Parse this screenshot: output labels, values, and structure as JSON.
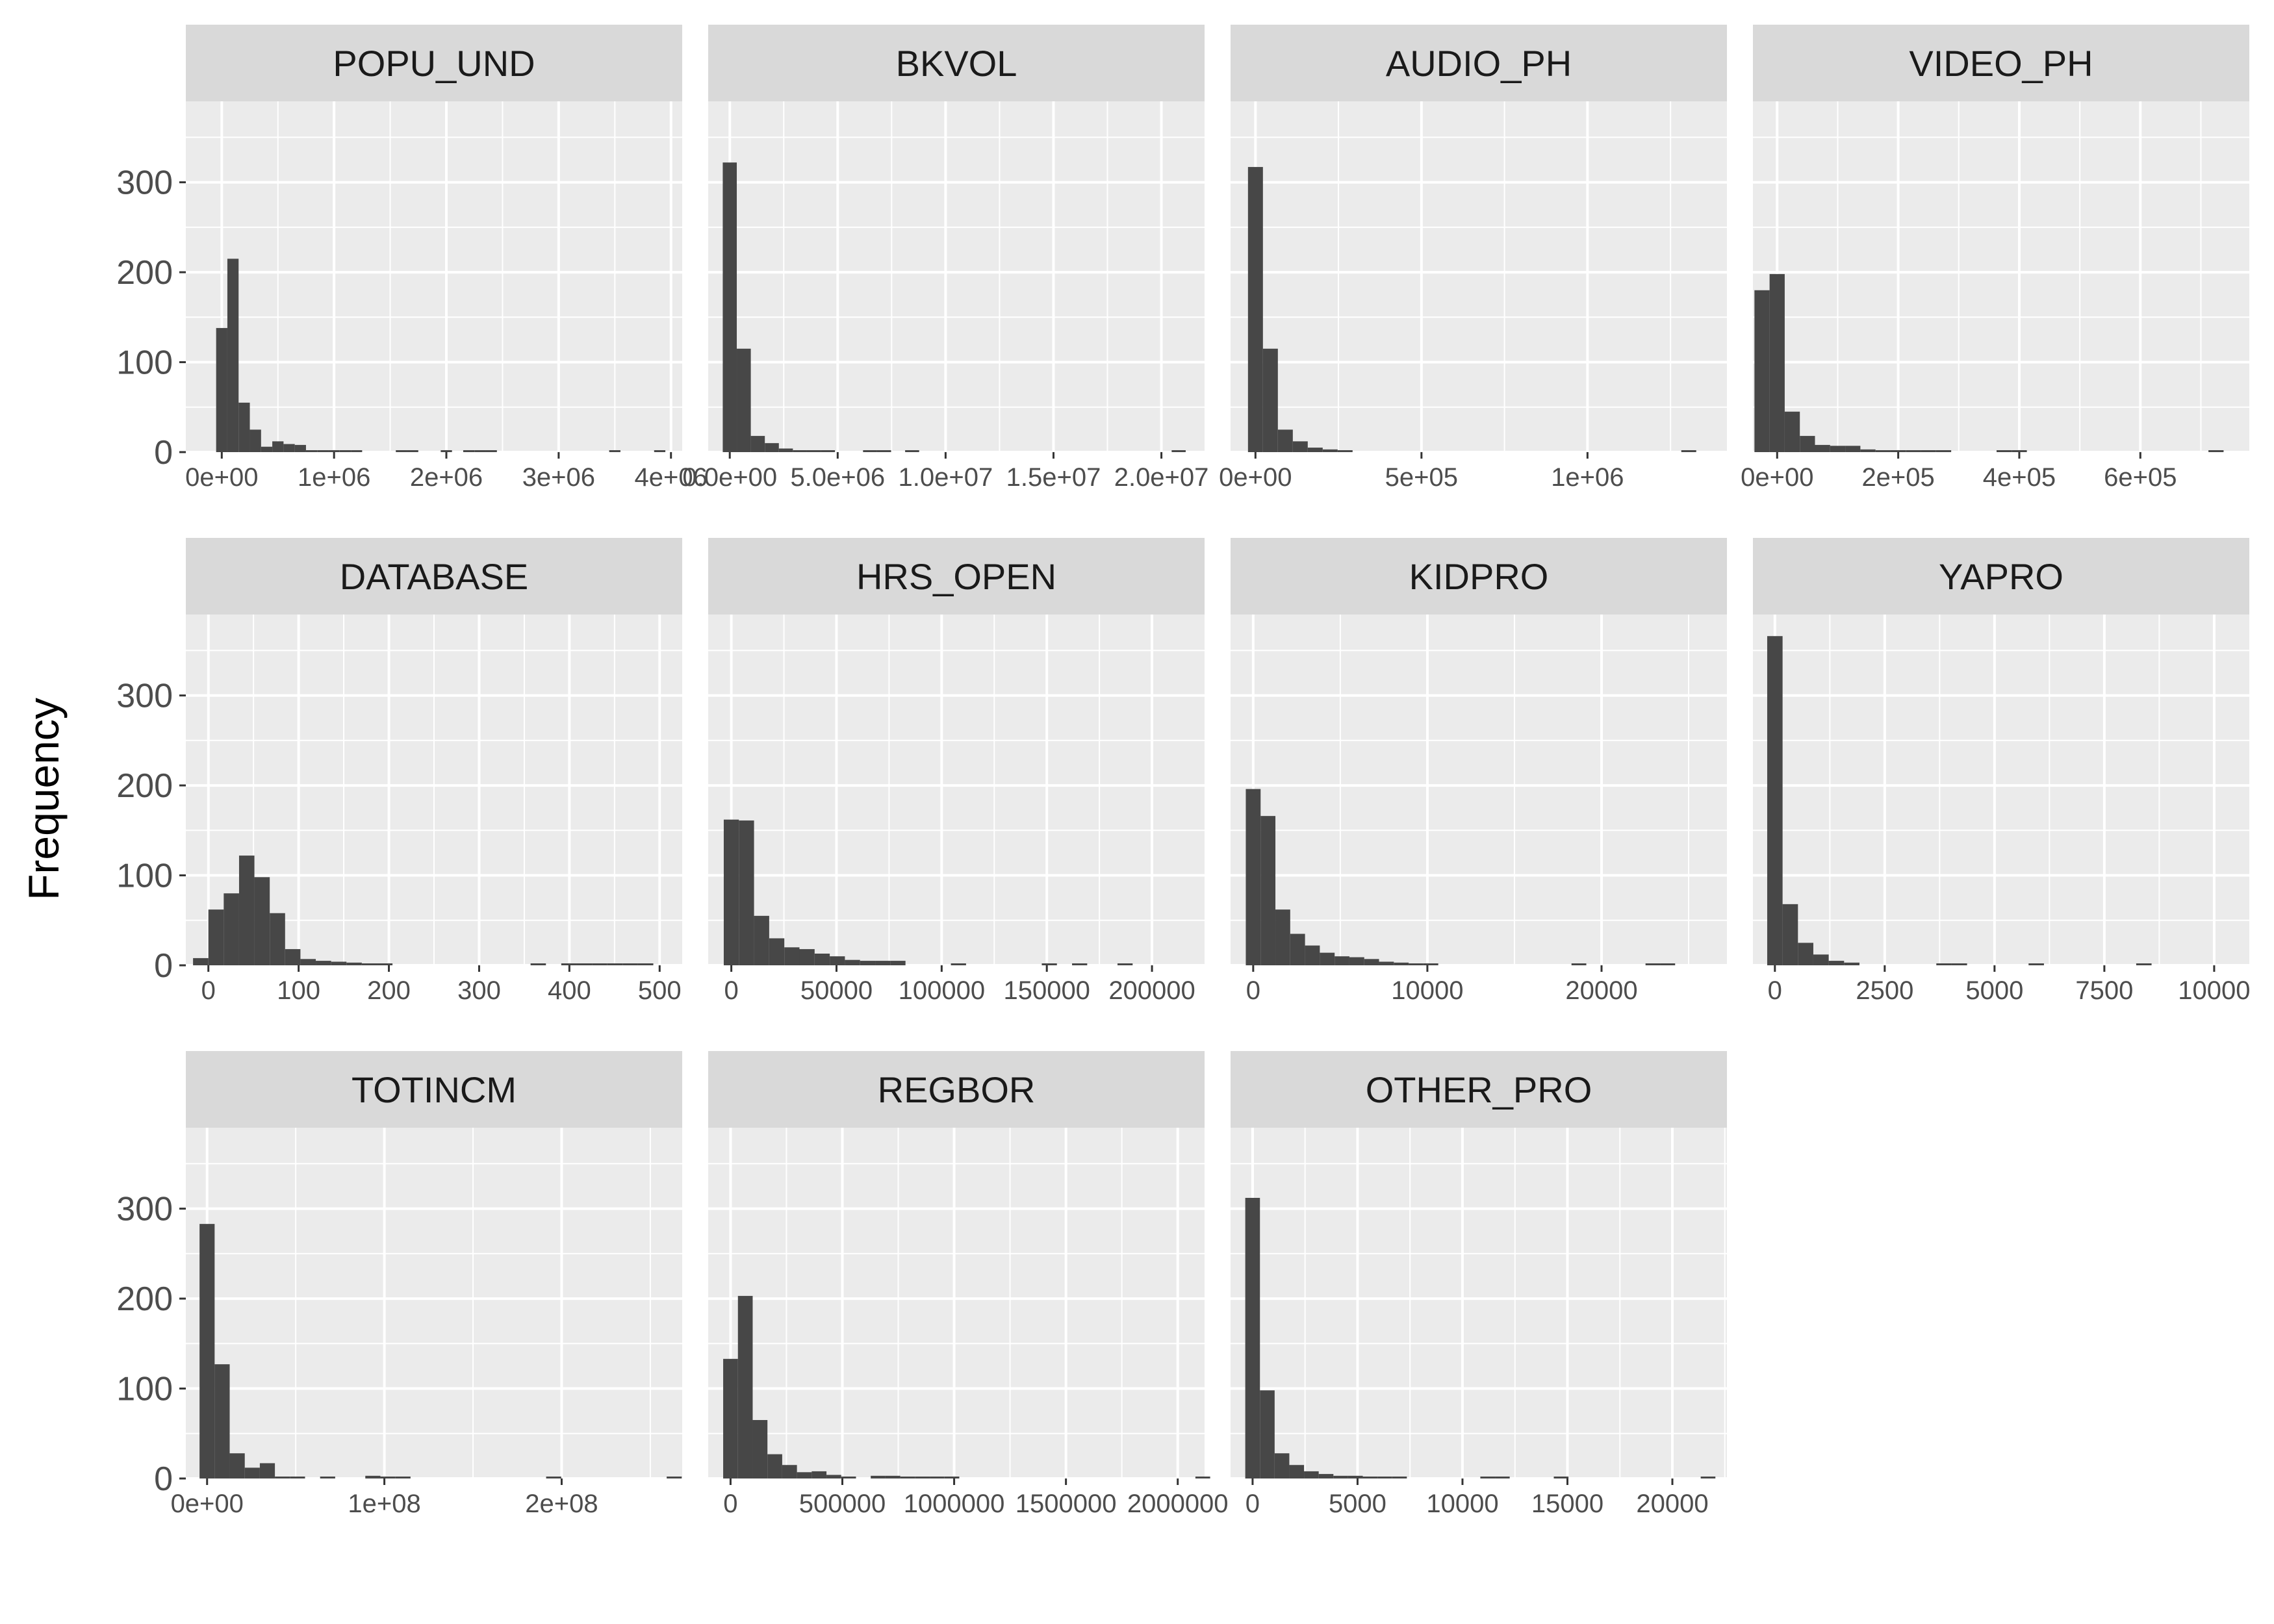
{
  "chart_data": {
    "type": "bar",
    "subtype": "faceted-histogram",
    "ylabel": "Frequency",
    "xlabel": "",
    "ylim": [
      0,
      390
    ],
    "yticks": [
      0,
      100,
      200,
      300
    ],
    "grid": true,
    "colors": {
      "bar": "#474747",
      "panel": "#ebebeb",
      "strip": "#d9d9d9",
      "grid": "#ffffff"
    },
    "facets": [
      {
        "name": "POPU_UND",
        "xlim": [
          -320000,
          4100000
        ],
        "binwidth": 100000,
        "start": -50000,
        "counts": [
          138,
          215,
          55,
          25,
          6,
          12,
          9,
          8,
          2,
          2,
          2,
          2,
          1,
          0,
          0,
          0,
          1,
          1,
          0,
          0,
          1,
          0,
          1,
          1,
          1,
          0,
          0,
          0,
          0,
          0,
          0,
          0,
          0,
          0,
          0,
          1,
          0,
          0,
          0,
          1
        ],
        "xticks": [
          0,
          1000000,
          2000000,
          3000000,
          4000000
        ],
        "xtick_labels": [
          "0e+00",
          "1e+06",
          "2e+06",
          "3e+06",
          "4e+06"
        ]
      },
      {
        "name": "BKVOL",
        "xlim": [
          -1000000,
          22000000
        ],
        "binwidth": 650000,
        "start": -325000,
        "counts": [
          322,
          115,
          18,
          10,
          4,
          2,
          2,
          2,
          0,
          0,
          1,
          1,
          0,
          1,
          0,
          0,
          0,
          0,
          0,
          0,
          0,
          0,
          0,
          0,
          0,
          0,
          0,
          0,
          0,
          0,
          0,
          0,
          1
        ],
        "xticks": [
          0,
          5000000,
          10000000,
          15000000,
          20000000
        ],
        "xtick_labels": [
          "0.0e+00",
          "5.0e+06",
          "1.0e+07",
          "1.5e+07",
          "2.0e+07"
        ]
      },
      {
        "name": "AUDIO_PH",
        "xlim": [
          -75000,
          1420000
        ],
        "binwidth": 45000,
        "start": -22500,
        "counts": [
          317,
          115,
          25,
          12,
          5,
          3,
          2,
          0,
          0,
          0,
          0,
          0,
          0,
          0,
          0,
          0,
          0,
          0,
          0,
          0,
          0,
          0,
          0,
          0,
          0,
          0,
          0,
          0,
          0,
          1
        ],
        "xticks": [
          0,
          500000,
          1000000
        ],
        "xtick_labels": [
          "0e+00",
          "5e+05",
          "1e+06"
        ]
      },
      {
        "name": "VIDEO_PH",
        "xlim": [
          -40000,
          780000
        ],
        "binwidth": 25000,
        "start": -37500,
        "counts": [
          180,
          198,
          45,
          18,
          8,
          7,
          7,
          3,
          2,
          1,
          1,
          1,
          1,
          0,
          0,
          0,
          1,
          1,
          0,
          0,
          0,
          0,
          0,
          0,
          0,
          0,
          0,
          0,
          0,
          0,
          1
        ],
        "xticks": [
          0,
          200000,
          400000,
          600000
        ],
        "xtick_labels": [
          "0e+00",
          "2e+05",
          "4e+05",
          "6e+05"
        ]
      },
      {
        "name": "DATABASE",
        "xlim": [
          -25000,
          525000
        ],
        "binwidth": 17000,
        "start": -17000,
        "counts": [
          8,
          62,
          80,
          122,
          98,
          58,
          18,
          7,
          5,
          4,
          3,
          1,
          1,
          0,
          0,
          0,
          0,
          0,
          0,
          0,
          0,
          0,
          1,
          0,
          2,
          1,
          1,
          1,
          2,
          1
        ],
        "xticks": [
          0,
          100000,
          200000,
          300000,
          400000,
          500000
        ],
        "xtick_labels": [
          "0",
          "100",
          "200",
          "300",
          "400",
          "500"
        ]
      },
      {
        "name": "HRS_OPEN",
        "xlim": [
          -11000,
          225000
        ],
        "binwidth": 7200,
        "start": -3600,
        "counts": [
          162,
          161,
          55,
          30,
          20,
          18,
          13,
          10,
          6,
          5,
          5,
          5,
          0,
          0,
          0,
          1,
          0,
          0,
          0,
          0,
          0,
          1,
          0,
          1,
          0,
          0,
          1,
          0,
          0,
          0,
          0,
          0,
          0,
          0,
          0,
          0,
          0,
          0,
          0,
          0,
          0,
          1
        ],
        "xticks": [
          0,
          50000,
          100000,
          150000,
          200000
        ],
        "xtick_labels": [
          "0",
          "50000",
          "100000",
          "150000",
          "200000"
        ]
      },
      {
        "name": "KIDPRO",
        "xlim": [
          -1300000,
          27200000
        ],
        "binwidth": 850000,
        "start": -425000,
        "counts": [
          196,
          166,
          62,
          35,
          22,
          14,
          10,
          9,
          7,
          4,
          3,
          2,
          2,
          0,
          0,
          0,
          0,
          0,
          0,
          0,
          0,
          0,
          1,
          0,
          0,
          0,
          0,
          1,
          1,
          0,
          0,
          0,
          0,
          0,
          0,
          1
        ],
        "xticks": [
          0,
          10000000,
          20000000
        ],
        "xtick_labels": [
          "0",
          "10000",
          "20000"
        ]
      },
      {
        "name": "YAPRO",
        "xlim": [
          -500000,
          10800000
        ],
        "binwidth": 350000,
        "start": -175000,
        "counts": [
          366,
          68,
          25,
          12,
          5,
          3,
          0,
          0,
          0,
          0,
          0,
          1,
          1,
          0,
          0,
          0,
          0,
          1,
          0,
          0,
          0,
          0,
          0,
          0,
          1,
          0,
          0,
          0,
          0,
          0,
          0,
          0,
          0,
          0,
          0,
          0,
          0,
          0,
          0,
          1
        ],
        "xticks": [
          0,
          2500000,
          5000000,
          7500000,
          10000000
        ],
        "xtick_labels": [
          "0",
          "2500",
          "5000",
          "7500",
          "10000"
        ]
      },
      {
        "name": "TOTINCM",
        "xlim": [
          -12000000,
          268000000
        ],
        "binwidth": 8500000,
        "start": -4250000,
        "counts": [
          283,
          127,
          28,
          12,
          17,
          2,
          2,
          0,
          1,
          0,
          0,
          3,
          2,
          1,
          0,
          0,
          0,
          0,
          0,
          0,
          0,
          0,
          0,
          1,
          0,
          0,
          0,
          0,
          0,
          0,
          0,
          1
        ],
        "xticks": [
          0,
          100000000,
          200000000
        ],
        "xtick_labels": [
          "0e+00",
          "1e+08",
          "2e+08"
        ]
      },
      {
        "name": "REGBOR",
        "xlim": [
          -100000,
          2120000
        ],
        "binwidth": 66000,
        "start": -33000,
        "counts": [
          133,
          203,
          65,
          27,
          15,
          7,
          8,
          4,
          2,
          0,
          3,
          3,
          2,
          2,
          1,
          1,
          0,
          0,
          0,
          0,
          0,
          0,
          0,
          0,
          0,
          0,
          0,
          0,
          0,
          0,
          0,
          0,
          1
        ],
        "xticks": [
          0,
          500000,
          1000000,
          1500000,
          2000000
        ],
        "xtick_labels": [
          "0",
          "500000",
          "1000000",
          "1500000",
          "2000000"
        ]
      },
      {
        "name": "OTHER_PRO",
        "xlim": [
          -1050000,
          22600000
        ],
        "binwidth": 700000,
        "start": -350000,
        "counts": [
          312,
          98,
          28,
          15,
          8,
          5,
          3,
          3,
          2,
          1,
          1,
          0,
          0,
          0,
          0,
          0,
          1,
          1,
          0,
          0,
          0,
          1,
          0,
          0,
          0,
          0,
          0,
          0,
          0,
          0,
          0,
          1
        ],
        "xticks": [
          0,
          5000000,
          10000000,
          15000000,
          20000000
        ],
        "xtick_labels": [
          "0",
          "5000",
          "10000",
          "15000",
          "20000"
        ]
      }
    ]
  }
}
